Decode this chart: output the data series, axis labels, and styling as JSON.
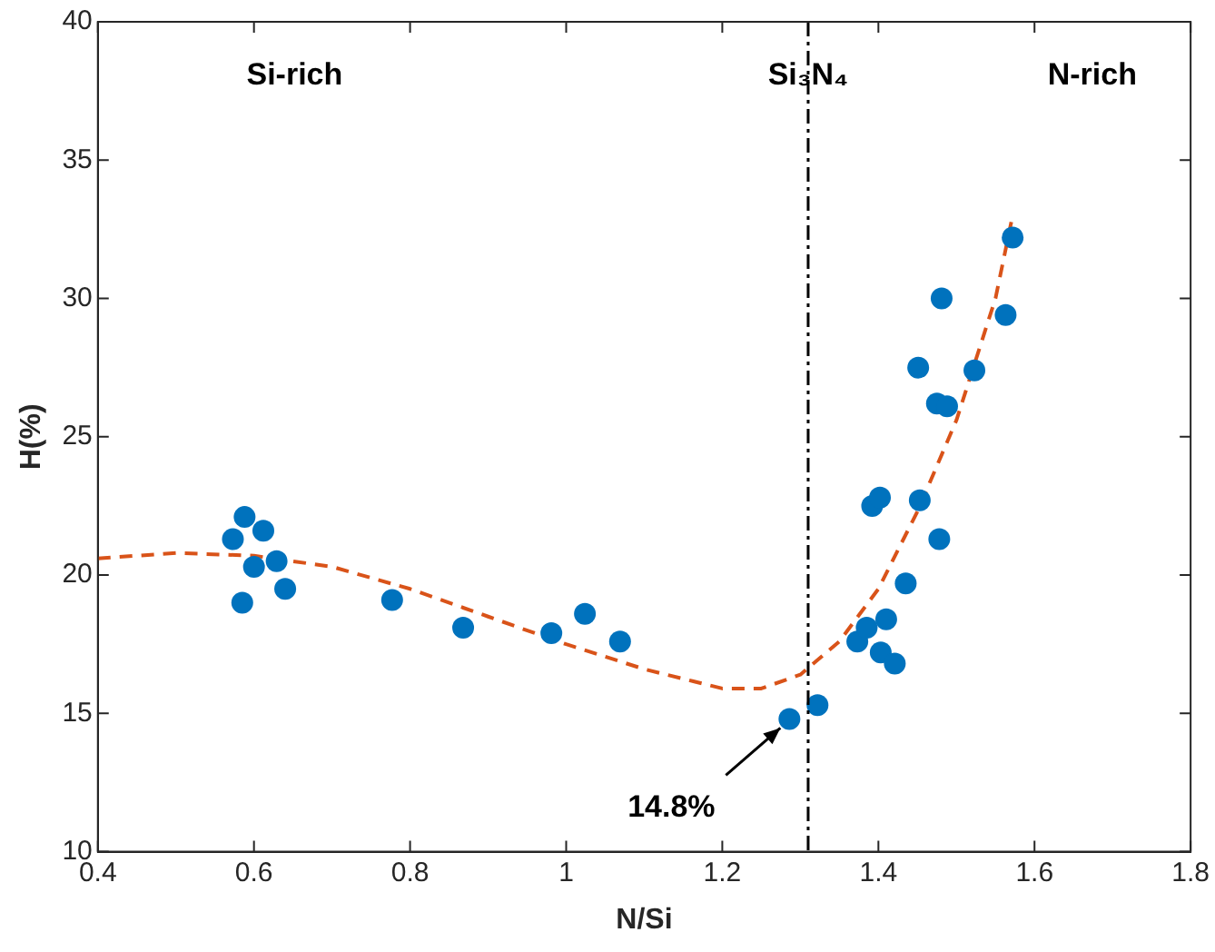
{
  "chart_data": {
    "type": "scatter",
    "xlabel": "N/Si",
    "ylabel": "H(%)",
    "xlim": [
      0.4,
      1.8
    ],
    "xticks": [
      0.4,
      0.6,
      0.8,
      {
        "value": 1,
        "label": "1"
      },
      1.2,
      1.4,
      1.6,
      1.8
    ],
    "ylim": [
      10,
      40
    ],
    "yticks": [
      10,
      15,
      20,
      25,
      30,
      35,
      40
    ],
    "grid": false,
    "legend": false,
    "marker": "circle",
    "series": [
      {
        "color": "#0072bd",
        "x": [
          0.573,
          0.588,
          0.585,
          0.6,
          0.612,
          0.629,
          0.64,
          0.777,
          0.868,
          0.981,
          1.024,
          1.069,
          1.286,
          1.322,
          1.373,
          1.385,
          1.41,
          1.403,
          1.421,
          1.435,
          1.478,
          1.453,
          1.392,
          1.402,
          1.451,
          1.475,
          1.488,
          1.481,
          1.523,
          1.563,
          1.572
        ],
        "values": [
          21.3,
          22.1,
          19.0,
          20.3,
          21.6,
          20.5,
          19.5,
          19.1,
          18.1,
          17.9,
          18.6,
          17.6,
          14.8,
          15.3,
          17.6,
          18.1,
          18.4,
          17.2,
          16.8,
          19.7,
          21.3,
          22.7,
          22.5,
          22.8,
          27.5,
          26.2,
          26.1,
          30.0,
          27.4,
          29.4,
          32.2
        ]
      },
      {
        "type": "line",
        "color": "#d95319",
        "line_style": "dashed",
        "marker": "none",
        "x": [
          0.4,
          0.5,
          0.6,
          0.7,
          0.8,
          0.9,
          1.0,
          1.1,
          1.2,
          1.25,
          1.3,
          1.35,
          1.4,
          1.45,
          1.5,
          1.55,
          1.572
        ],
        "values": [
          20.6,
          20.8,
          20.7,
          20.3,
          19.5,
          18.5,
          17.5,
          16.6,
          15.9,
          15.9,
          16.4,
          17.6,
          19.5,
          22.3,
          25.6,
          30.0,
          33.0
        ]
      }
    ],
    "ref_lines": [
      {
        "axis": "x",
        "value": 1.31,
        "label": "Si₃N₄",
        "color": "#000000",
        "line_style": "dashdot"
      }
    ],
    "annotations": [
      "Si-rich",
      "N-rich",
      {
        "text": "14.8%",
        "x": 1.286,
        "y": 14.8
      }
    ]
  }
}
